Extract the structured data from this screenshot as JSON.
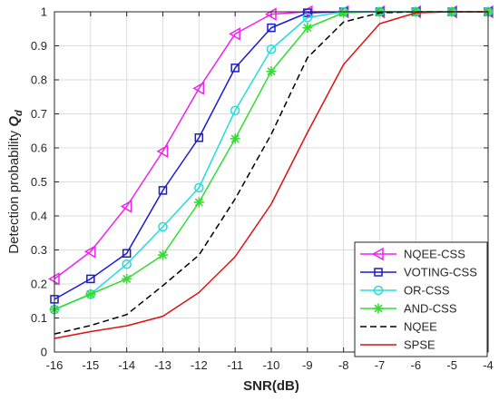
{
  "chart_data": {
    "type": "line",
    "xlabel": "SNR(dB)",
    "ylabel_prefix": "Detection probability ",
    "ylabel_symbol": "Q",
    "ylabel_sub": "d",
    "xlim": [
      -16,
      -4
    ],
    "ylim": [
      0,
      1
    ],
    "grid": true,
    "legend_position": "bottom-right",
    "x": [
      -16,
      -15,
      -14,
      -13,
      -12,
      -11,
      -10,
      -9,
      -8,
      -7,
      -6,
      -5,
      -4
    ],
    "x_tick_labels": [
      "-16",
      "-15",
      "-14",
      "-13",
      "-12",
      "-11",
      "-10",
      "-9",
      "-8",
      "-7",
      "-6",
      "-5",
      "-4"
    ],
    "y_ticks": [
      0,
      0.1,
      0.2,
      0.3,
      0.4,
      0.5,
      0.6,
      0.7,
      0.8,
      0.9,
      1
    ],
    "y_tick_labels": [
      "0",
      "0.1",
      "0.2",
      "0.3",
      "0.4",
      "0.5",
      "0.6",
      "0.7",
      "0.8",
      "0.9",
      "1"
    ],
    "series": [
      {
        "name": "NQEE-CSS",
        "color": "#ee22ee",
        "marker": "triangle-left",
        "dash": "solid",
        "values": [
          0.215,
          0.295,
          0.428,
          0.59,
          0.775,
          0.935,
          0.993,
          1.0,
          1.0,
          1.0,
          1.0,
          1.0,
          1.0
        ]
      },
      {
        "name": "VOTING-CSS",
        "color": "#1a1ad0",
        "marker": "square",
        "dash": "solid",
        "values": [
          0.155,
          0.215,
          0.29,
          0.475,
          0.63,
          0.835,
          0.953,
          0.997,
          1.0,
          1.0,
          1.0,
          1.0,
          1.0
        ]
      },
      {
        "name": "OR-CSS",
        "color": "#22dddd",
        "marker": "circle",
        "dash": "solid",
        "values": [
          0.125,
          0.17,
          0.258,
          0.368,
          0.483,
          0.71,
          0.89,
          0.983,
          1.0,
          1.0,
          1.0,
          1.0,
          1.0
        ]
      },
      {
        "name": "AND-CSS",
        "color": "#33dd33",
        "marker": "asterisk",
        "dash": "solid",
        "values": [
          0.125,
          0.17,
          0.215,
          0.285,
          0.44,
          0.627,
          0.825,
          0.953,
          0.997,
          1.0,
          1.0,
          1.0,
          1.0
        ]
      },
      {
        "name": "NQEE",
        "color": "#000000",
        "marker": "none",
        "dash": "dashed",
        "values": [
          0.053,
          0.078,
          0.11,
          0.195,
          0.285,
          0.45,
          0.64,
          0.865,
          0.97,
          0.997,
          1.0,
          1.0,
          1.0
        ]
      },
      {
        "name": "SPSE",
        "color": "#dd1111",
        "marker": "none",
        "dash": "solid",
        "values": [
          0.04,
          0.06,
          0.077,
          0.105,
          0.175,
          0.28,
          0.435,
          0.645,
          0.845,
          0.965,
          0.997,
          1.0,
          1.0
        ]
      }
    ]
  }
}
